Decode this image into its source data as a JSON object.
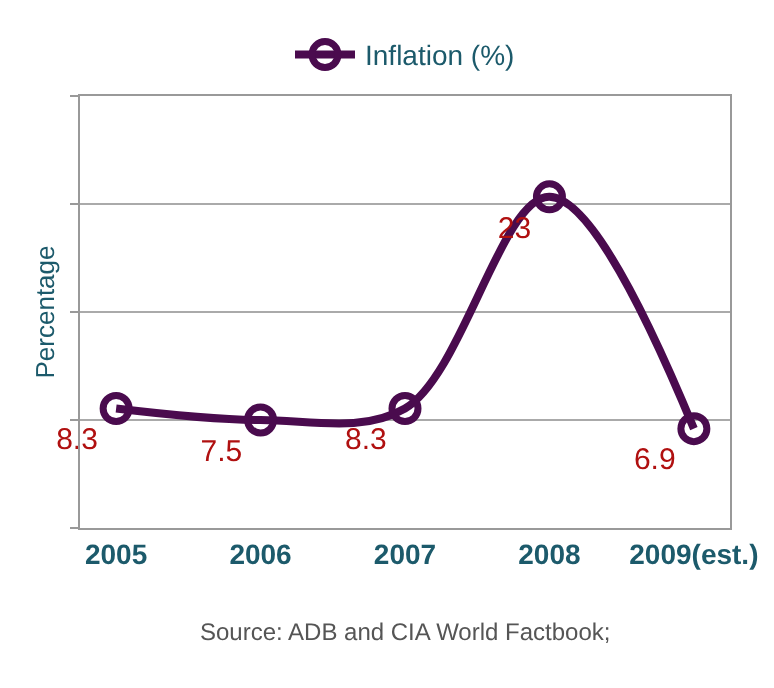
{
  "chart_data": {
    "type": "line",
    "categories": [
      "2005",
      "2006",
      "2007",
      "2008",
      "2009(est.)"
    ],
    "series": [
      {
        "name": "Inflation (%)",
        "color": "#4a0b4e",
        "values": [
          8.3,
          7.5,
          8.3,
          23,
          6.9
        ]
      }
    ],
    "ylabel": "Percentage",
    "ylim": [
      0,
      30
    ],
    "yticks": [
      {
        "value": 0,
        "label": null
      },
      {
        "value": 7.5,
        "label": null
      },
      {
        "value": 15,
        "label": null
      },
      {
        "value": 22.5,
        "label": null
      },
      {
        "value": 30,
        "label": null
      }
    ],
    "grid": "y",
    "legend": "top",
    "marker": "circle",
    "line_style": "solid",
    "data_labels": true,
    "tick_labels": "x",
    "annotations": [
      "Source: ADB and CIA World Factbook;"
    ]
  }
}
